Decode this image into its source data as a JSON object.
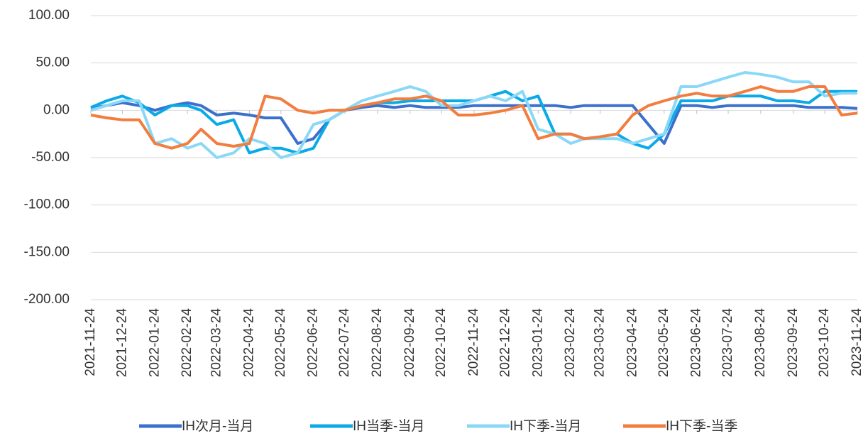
{
  "chart_data": {
    "type": "line",
    "x": [
      "2021-11-24",
      "2021-12-09",
      "2021-12-24",
      "2022-01-09",
      "2022-01-24",
      "2022-02-09",
      "2022-02-24",
      "2022-03-09",
      "2022-03-24",
      "2022-04-09",
      "2022-04-24",
      "2022-05-09",
      "2022-05-24",
      "2022-06-09",
      "2022-06-24",
      "2022-07-09",
      "2022-07-24",
      "2022-08-09",
      "2022-08-24",
      "2022-09-09",
      "2022-09-24",
      "2022-10-09",
      "2022-10-24",
      "2022-11-09",
      "2022-11-24",
      "2022-12-09",
      "2022-12-24",
      "2023-01-09",
      "2023-01-24",
      "2023-02-09",
      "2023-02-24",
      "2023-03-09",
      "2023-03-24",
      "2023-04-09",
      "2023-04-24",
      "2023-05-09",
      "2023-05-24",
      "2023-06-09",
      "2023-06-24",
      "2023-07-09",
      "2023-07-24",
      "2023-08-09",
      "2023-08-24",
      "2023-09-09",
      "2023-09-24",
      "2023-10-09",
      "2023-10-24",
      "2023-11-09",
      "2023-11-24"
    ],
    "series": [
      {
        "name": "IH次月-当月",
        "color": "#3b70cc",
        "values": [
          2,
          5,
          8,
          5,
          0,
          5,
          8,
          5,
          -5,
          -3,
          -5,
          -8,
          -8,
          -35,
          -30,
          -10,
          0,
          3,
          5,
          3,
          5,
          3,
          3,
          3,
          5,
          5,
          5,
          5,
          5,
          5,
          3,
          5,
          5,
          5,
          5,
          -15,
          -35,
          5,
          5,
          3,
          5,
          5,
          5,
          5,
          5,
          3,
          3,
          3,
          2
        ]
      },
      {
        "name": "IH当季-当月",
        "color": "#0aaae8",
        "values": [
          3,
          10,
          15,
          8,
          -5,
          5,
          5,
          0,
          -15,
          -10,
          -45,
          -40,
          -40,
          -45,
          -40,
          -10,
          0,
          5,
          8,
          8,
          10,
          10,
          10,
          10,
          10,
          15,
          20,
          10,
          15,
          -25,
          -25,
          -30,
          -28,
          -25,
          -35,
          -40,
          -25,
          10,
          10,
          10,
          15,
          15,
          15,
          10,
          10,
          8,
          20,
          20,
          20
        ]
      },
      {
        "name": "IH下季-当月",
        "color": "#8bd8f6",
        "values": [
          0,
          5,
          10,
          10,
          -35,
          -30,
          -40,
          -35,
          -50,
          -45,
          -30,
          -35,
          -50,
          -45,
          -15,
          -10,
          0,
          10,
          15,
          20,
          25,
          20,
          5,
          5,
          10,
          15,
          10,
          20,
          -20,
          -25,
          -35,
          -30,
          -30,
          -30,
          -35,
          -30,
          -25,
          25,
          25,
          30,
          35,
          40,
          38,
          35,
          30,
          30,
          15,
          18,
          18
        ]
      },
      {
        "name": "IH下季-当季",
        "color": "#f27d3e",
        "values": [
          -5,
          -8,
          -10,
          -10,
          -35,
          -40,
          -35,
          -20,
          -35,
          -38,
          -35,
          15,
          12,
          0,
          -3,
          0,
          0,
          5,
          8,
          12,
          12,
          15,
          10,
          -5,
          -5,
          -3,
          0,
          5,
          -30,
          -25,
          -25,
          -30,
          -28,
          -25,
          -5,
          5,
          10,
          15,
          18,
          15,
          15,
          20,
          25,
          20,
          20,
          25,
          25,
          -5,
          -3
        ]
      }
    ],
    "xlim": [
      "2021-11-24",
      "2023-11-24"
    ],
    "xticks": [
      "2021-11-24",
      "2021-12-24",
      "2022-01-24",
      "2022-02-24",
      "2022-03-24",
      "2022-04-24",
      "2022-05-24",
      "2022-06-24",
      "2022-07-24",
      "2022-08-24",
      "2022-09-24",
      "2022-10-24",
      "2022-11-24",
      "2022-12-24",
      "2023-01-24",
      "2023-02-24",
      "2023-03-24",
      "2023-04-24",
      "2023-05-24",
      "2023-06-24",
      "2023-07-24",
      "2023-08-24",
      "2023-09-24",
      "2023-10-24",
      "2023-11-24"
    ],
    "ylim": [
      -200,
      100
    ],
    "yticks": [
      {
        "value": -200,
        "label": "-200.00"
      },
      {
        "value": -150,
        "label": "-150.00"
      },
      {
        "value": -100,
        "label": "-100.00"
      },
      {
        "value": -50,
        "label": "-50.00"
      },
      {
        "value": 0,
        "label": "0.00"
      },
      {
        "value": 50,
        "label": "50.00"
      },
      {
        "value": 100,
        "label": "100.00"
      }
    ],
    "grid": true,
    "legend": "bottom"
  }
}
